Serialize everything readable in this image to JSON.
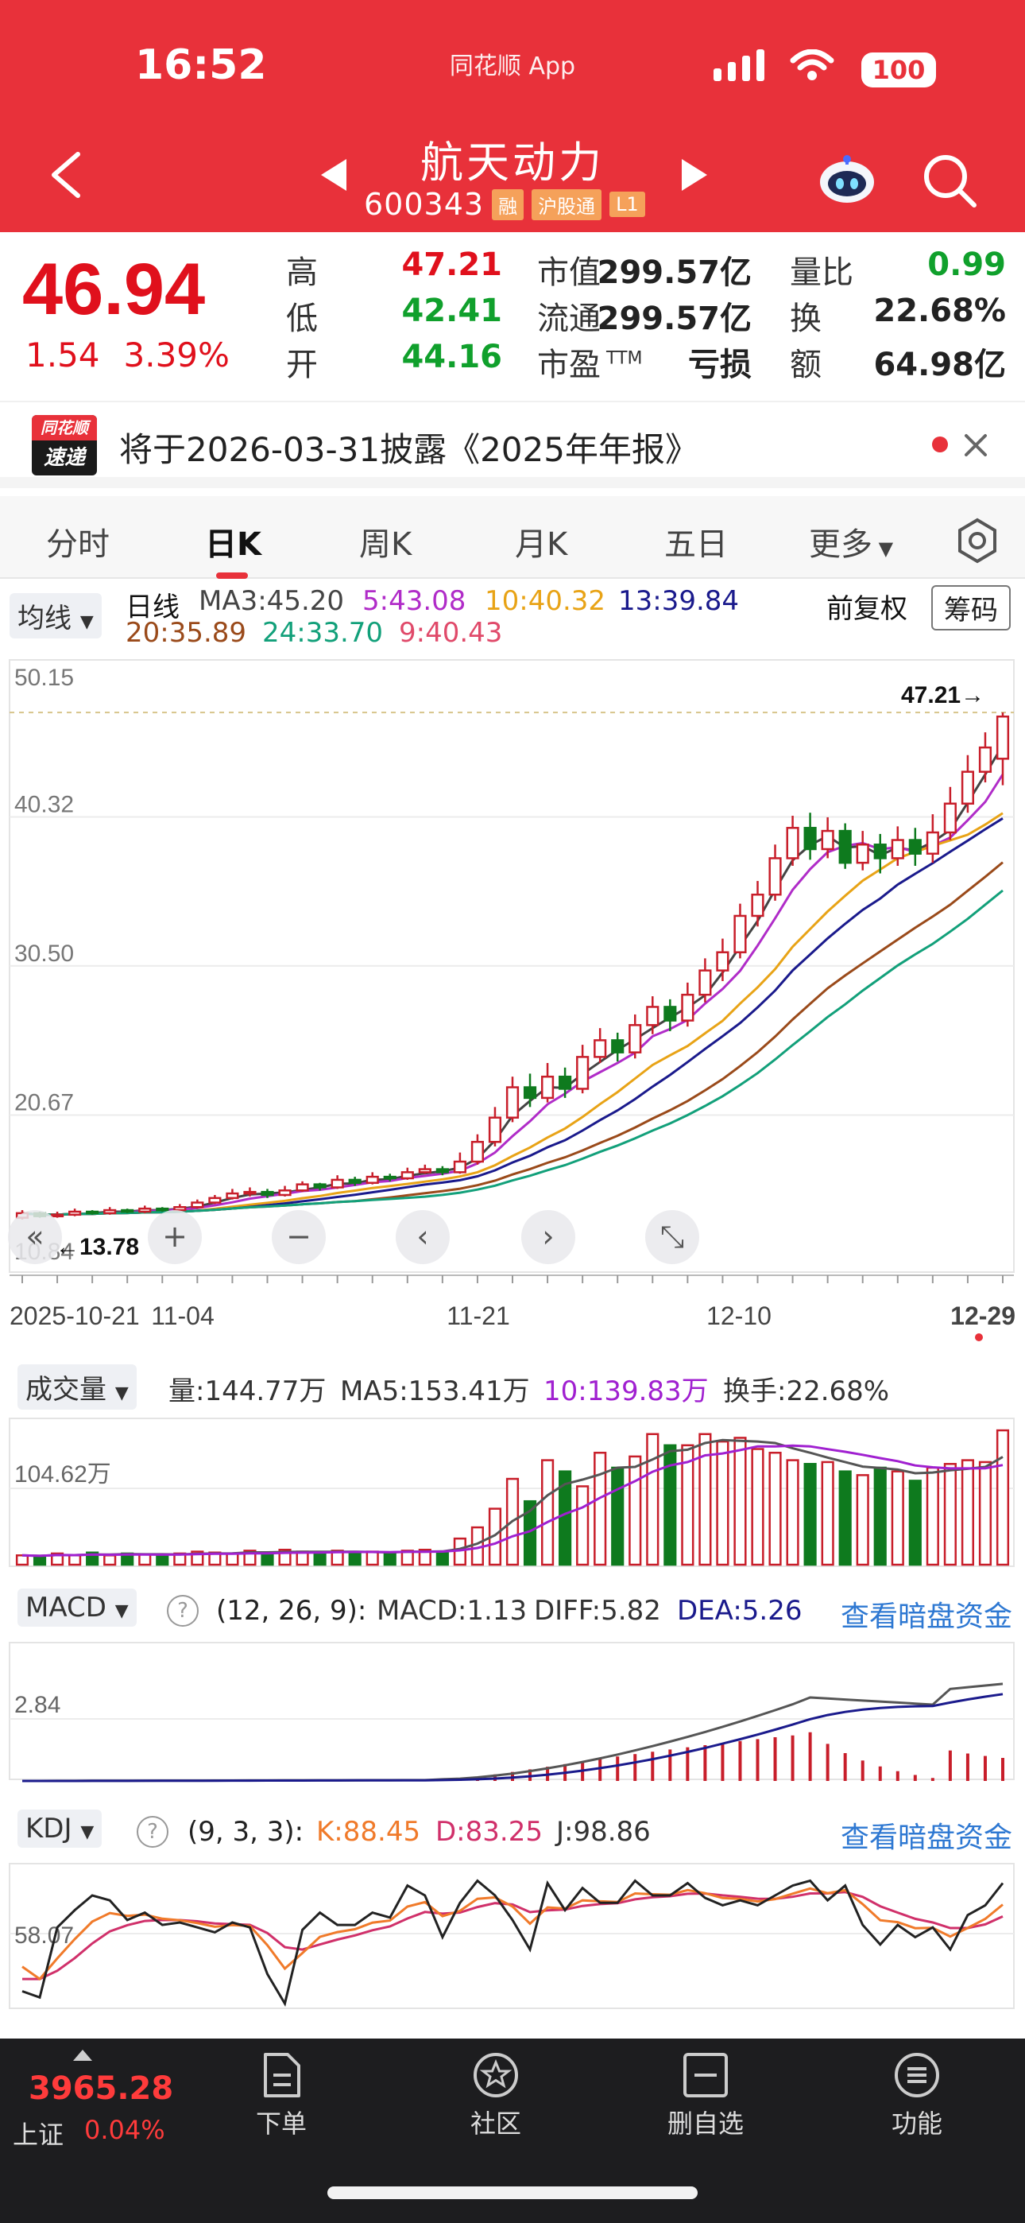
{
  "status_bar": {
    "time": "16:52",
    "app_label": "同花顺 App",
    "battery": "100"
  },
  "header": {
    "stock_name": "航天动力",
    "stock_code": "600343",
    "tags": [
      "融",
      "沪股通",
      "L1"
    ]
  },
  "quote": {
    "price": "46.94",
    "change": "1.54",
    "change_pct": "3.39%",
    "stats": [
      {
        "label": "高",
        "value": "47.21",
        "color": "#e0101c"
      },
      {
        "label": "低",
        "value": "42.41",
        "color": "#10a02c"
      },
      {
        "label": "开",
        "value": "44.16",
        "color": "#10a02c"
      },
      {
        "label": "市值",
        "value": "299.57亿",
        "color": "#222222"
      },
      {
        "label": "流通",
        "value": "299.57亿",
        "color": "#222222"
      },
      {
        "label": "市盈TTM",
        "value": "亏损",
        "color": "#222222"
      },
      {
        "label": "量比",
        "value": "0.99",
        "color": "#10a02c"
      },
      {
        "label": "换",
        "value": "22.68%",
        "color": "#222222"
      },
      {
        "label": "额",
        "value": "64.98亿",
        "color": "#222222"
      }
    ]
  },
  "notice": {
    "logo_top": "同花顺",
    "logo_bottom": "速递",
    "text": "将于2026-03-31披露《2025年年报》"
  },
  "tabs": [
    "分时",
    "日K",
    "周K",
    "月K",
    "五日",
    "更多"
  ],
  "active_tab": "日K",
  "ma_bar": {
    "dropdown": "均线",
    "period": "日线",
    "items": [
      {
        "text": "MA3:45.20",
        "color": "#444444"
      },
      {
        "text": "5:43.08",
        "color": "#b02cc8"
      },
      {
        "text": "10:40.32",
        "color": "#e8a316"
      },
      {
        "text": "13:39.84",
        "color": "#1a1a8c"
      },
      {
        "text": "20:35.89",
        "color": "#9a4a1a"
      },
      {
        "text": "24:33.70",
        "color": "#12a07a"
      },
      {
        "text": "9:40.43",
        "color": "#e04a6a"
      }
    ],
    "adjust_label": "前复权",
    "chips_button": "筹码"
  },
  "kchart": {
    "y_ticks": [
      "50.15",
      "40.32",
      "30.50",
      "20.67",
      "10.84"
    ],
    "x_ticks": [
      "2025-10-21",
      "11-04",
      "11-21",
      "12-10",
      "12-29"
    ],
    "high_marker": "47.21→",
    "low_marker": "←13.78"
  },
  "volume_panel": {
    "dropdown": "成交量",
    "vol": "量:144.77万",
    "ma5": "MA5:153.41万",
    "ma10": "10:139.83万",
    "turnover": "换手:22.68%",
    "y_label": "104.62万"
  },
  "macd_panel": {
    "dropdown": "MACD",
    "params": "(12, 26, 9):",
    "macd": "MACD:1.13",
    "diff": "DIFF:5.82",
    "dea": "DEA:5.26",
    "link": "查看暗盘资金",
    "y_label": "2.84"
  },
  "kdj_panel": {
    "dropdown": "KDJ",
    "params": "(9, 3, 3):",
    "k": "K:88.45",
    "d": "D:83.25",
    "j": "J:98.86",
    "link": "查看暗盘资金",
    "y_label": "58.07"
  },
  "bottom_bar": {
    "index_value": "3965.28",
    "index_name": "上证",
    "index_pct": "0.04%",
    "nav": [
      "下单",
      "社区",
      "删自选",
      "功能"
    ]
  },
  "chart_data": {
    "type": "candlestick",
    "title": "航天动力 日K",
    "x_range": [
      "2025-10-21",
      "2025-12-29"
    ],
    "ylim": [
      10.84,
      50.15
    ],
    "y_ticks": [
      50.15,
      40.32,
      30.5,
      20.67,
      10.84
    ],
    "candles": [
      [
        13.9,
        14.2,
        13.78,
        14.4
      ],
      [
        14.2,
        14.0,
        13.9,
        14.3
      ],
      [
        14.0,
        14.1,
        13.9,
        14.3
      ],
      [
        14.1,
        14.3,
        14.0,
        14.5
      ],
      [
        14.3,
        14.2,
        14.1,
        14.4
      ],
      [
        14.2,
        14.4,
        14.1,
        14.6
      ],
      [
        14.4,
        14.3,
        14.2,
        14.5
      ],
      [
        14.3,
        14.5,
        14.2,
        14.7
      ],
      [
        14.5,
        14.4,
        14.3,
        14.6
      ],
      [
        14.4,
        14.6,
        14.3,
        14.8
      ],
      [
        14.6,
        14.9,
        14.5,
        15.1
      ],
      [
        14.9,
        15.2,
        14.8,
        15.4
      ],
      [
        15.2,
        15.5,
        15.1,
        15.8
      ],
      [
        15.5,
        15.6,
        15.3,
        15.9
      ],
      [
        15.6,
        15.4,
        15.2,
        15.8
      ],
      [
        15.4,
        15.7,
        15.3,
        16.0
      ],
      [
        15.7,
        16.1,
        15.6,
        16.3
      ],
      [
        16.1,
        15.9,
        15.7,
        16.2
      ],
      [
        15.9,
        16.4,
        15.8,
        16.7
      ],
      [
        16.4,
        16.2,
        16.0,
        16.6
      ],
      [
        16.2,
        16.6,
        16.1,
        16.9
      ],
      [
        16.6,
        16.5,
        16.3,
        16.8
      ],
      [
        16.5,
        16.9,
        16.4,
        17.2
      ],
      [
        16.9,
        17.1,
        16.8,
        17.4
      ],
      [
        17.1,
        16.9,
        16.7,
        17.3
      ],
      [
        16.9,
        17.6,
        16.8,
        18.2
      ],
      [
        17.6,
        18.9,
        17.4,
        19.4
      ],
      [
        18.9,
        20.5,
        18.6,
        21.2
      ],
      [
        20.5,
        22.5,
        20.2,
        23.2
      ],
      [
        22.5,
        21.8,
        21.2,
        23.4
      ],
      [
        21.8,
        23.2,
        21.5,
        24.1
      ],
      [
        23.2,
        22.4,
        21.8,
        23.8
      ],
      [
        22.4,
        24.5,
        22.1,
        25.3
      ],
      [
        24.5,
        25.6,
        24.1,
        26.4
      ],
      [
        25.6,
        24.8,
        24.2,
        26.1
      ],
      [
        24.8,
        26.6,
        24.4,
        27.3
      ],
      [
        26.6,
        27.8,
        26.0,
        28.5
      ],
      [
        27.8,
        26.9,
        26.2,
        28.3
      ],
      [
        26.9,
        28.6,
        26.5,
        29.4
      ],
      [
        28.6,
        30.2,
        28.1,
        31.0
      ],
      [
        30.2,
        31.4,
        29.5,
        32.3
      ],
      [
        31.4,
        33.8,
        31.0,
        34.6
      ],
      [
        33.8,
        35.2,
        33.1,
        36.1
      ],
      [
        35.2,
        37.6,
        34.8,
        38.5
      ],
      [
        37.6,
        39.6,
        37.1,
        40.4
      ],
      [
        39.6,
        38.2,
        37.5,
        40.6
      ],
      [
        38.2,
        39.4,
        37.6,
        40.3
      ],
      [
        39.4,
        37.3,
        36.9,
        39.9
      ],
      [
        37.3,
        38.5,
        36.8,
        39.4
      ],
      [
        38.5,
        37.6,
        36.6,
        39.2
      ],
      [
        37.6,
        38.8,
        37.1,
        39.7
      ],
      [
        38.8,
        37.9,
        37.1,
        39.6
      ],
      [
        37.9,
        39.3,
        37.3,
        40.5
      ],
      [
        39.3,
        41.2,
        38.8,
        42.3
      ],
      [
        41.2,
        43.3,
        40.6,
        44.4
      ],
      [
        43.3,
        44.9,
        42.6,
        45.9
      ],
      [
        44.16,
        46.94,
        42.41,
        47.21
      ]
    ]
  }
}
